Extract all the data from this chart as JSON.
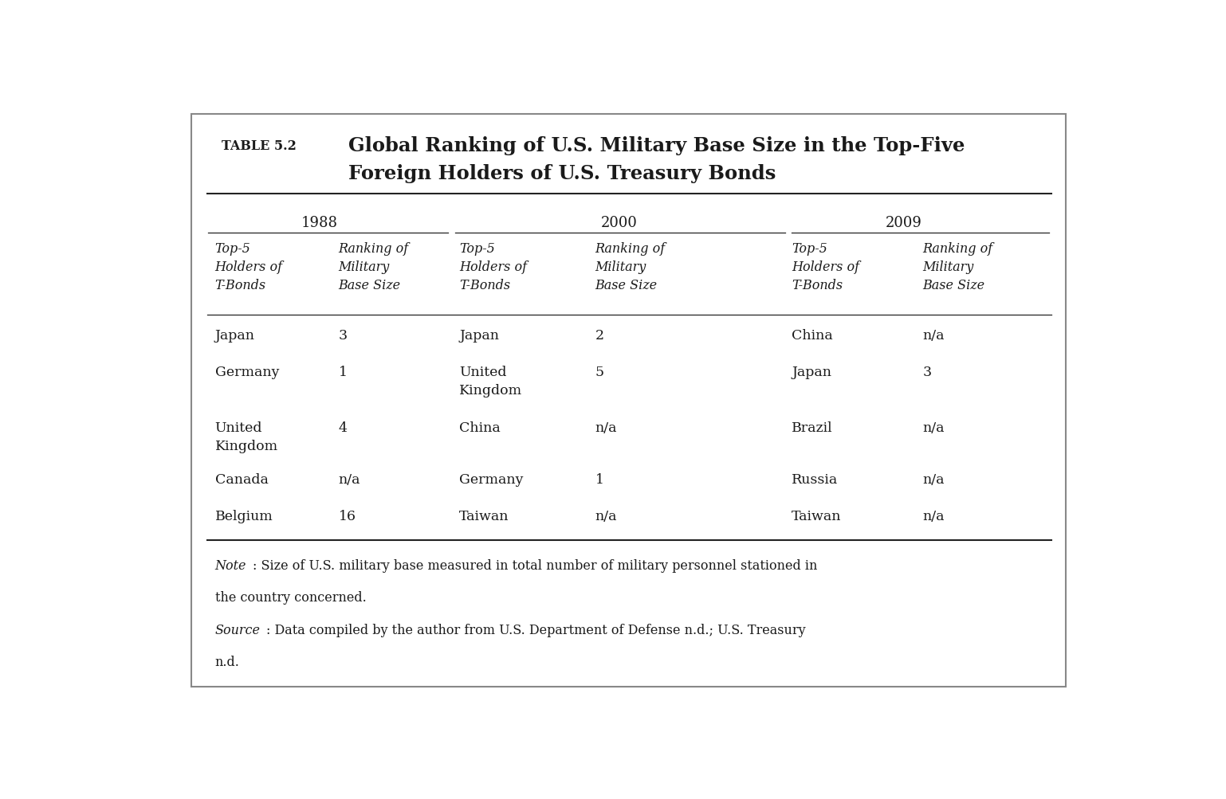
{
  "table_label": "TABLE 5.2",
  "title_line1": "Global Ranking of U.S. Military Base Size in the Top-Five",
  "title_line2": "Foreign Holders of U.S. Treasury Bonds",
  "year_headers": [
    "1988",
    "2000",
    "2009"
  ],
  "rows_1988": [
    [
      "Japan",
      "3"
    ],
    [
      "Germany",
      "1"
    ],
    [
      "United\nKingdom",
      "4"
    ],
    [
      "Canada",
      "n/a"
    ],
    [
      "Belgium",
      "16"
    ]
  ],
  "rows_2000": [
    [
      "Japan",
      "2"
    ],
    [
      "United\nKingdom",
      "5"
    ],
    [
      "China",
      "n/a"
    ],
    [
      "Germany",
      "1"
    ],
    [
      "Taiwan",
      "n/a"
    ]
  ],
  "rows_2009": [
    [
      "China",
      "n/a"
    ],
    [
      "Japan",
      "3"
    ],
    [
      "Brazil",
      "n/a"
    ],
    [
      "Russia",
      "n/a"
    ],
    [
      "Taiwan",
      "n/a"
    ]
  ],
  "bg_color": "#ffffff",
  "text_color": "#1a1a1a",
  "line_color": "#222222",
  "font_size_title": 17.5,
  "font_size_label": 9,
  "font_size_year": 13,
  "font_size_subhdr": 11.5,
  "font_size_cell": 12.5,
  "font_size_note": 11.5
}
